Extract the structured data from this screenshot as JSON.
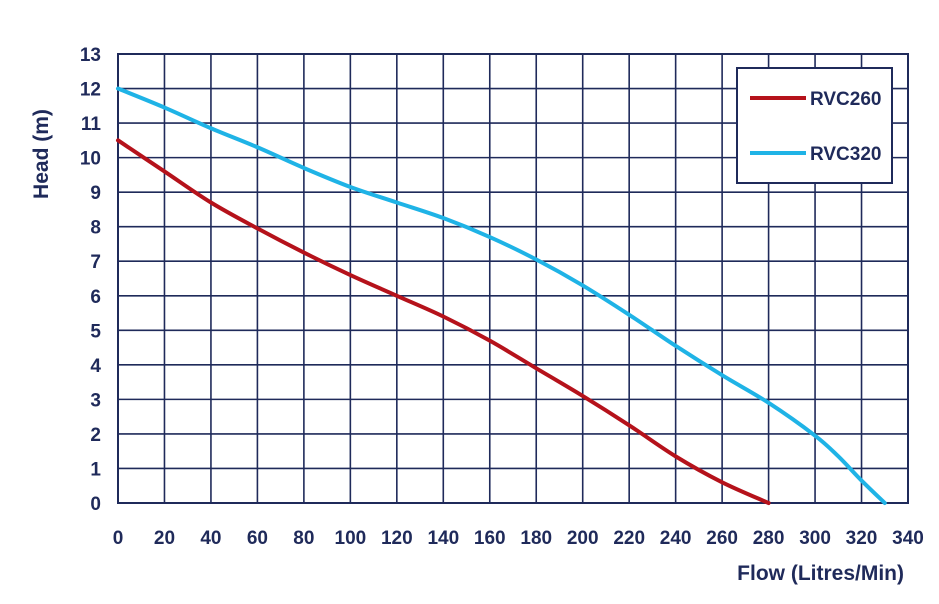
{
  "chart_data": {
    "type": "line",
    "title": "",
    "xlabel": "Flow (Litres/Min)",
    "ylabel": "Head (m)",
    "xlim": [
      0,
      340
    ],
    "ylim": [
      0,
      13
    ],
    "xticks": [
      0,
      20,
      40,
      60,
      80,
      100,
      120,
      140,
      160,
      180,
      200,
      220,
      240,
      260,
      280,
      300,
      320,
      340
    ],
    "yticks": [
      0,
      1,
      2,
      3,
      4,
      5,
      6,
      7,
      8,
      9,
      10,
      11,
      12,
      13
    ],
    "grid": true,
    "legend": "top-right",
    "series": [
      {
        "name": "RVC260",
        "color": "#b5121b",
        "x": [
          0,
          20,
          40,
          60,
          80,
          100,
          120,
          140,
          160,
          180,
          200,
          220,
          240,
          260,
          280
        ],
        "y": [
          10.5,
          9.6,
          8.7,
          7.95,
          7.25,
          6.6,
          6.0,
          5.4,
          4.7,
          3.9,
          3.1,
          2.25,
          1.35,
          0.6,
          0
        ]
      },
      {
        "name": "RVC320",
        "color": "#1fb3e6",
        "x": [
          0,
          20,
          40,
          60,
          80,
          100,
          120,
          140,
          160,
          180,
          200,
          220,
          240,
          260,
          280,
          300,
          310,
          320,
          330
        ],
        "y": [
          12.0,
          11.45,
          10.85,
          10.3,
          9.7,
          9.15,
          8.7,
          8.25,
          7.7,
          7.05,
          6.3,
          5.45,
          4.55,
          3.7,
          2.9,
          1.95,
          1.35,
          0.65,
          0
        ]
      }
    ]
  }
}
